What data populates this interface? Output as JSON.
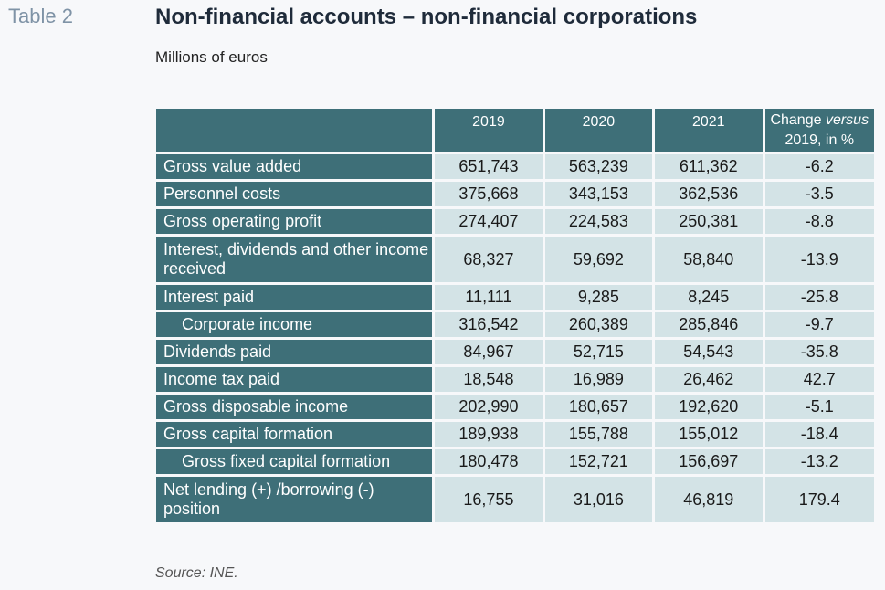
{
  "table_label": "Table 2",
  "title": "Non-financial accounts – non-financial corporations",
  "subtitle": "Millions of euros",
  "columns": {
    "y2019": "2019",
    "y2020": "2020",
    "y2021": "2021",
    "change_prefix": "Change ",
    "change_italic": "versus",
    "change_suffix": "2019, in %"
  },
  "rows": [
    {
      "label": "Gross value added",
      "indent": false,
      "v2019": "651,743",
      "v2020": "563,239",
      "v2021": "611,362",
      "change": "-6.2"
    },
    {
      "label": "Personnel costs",
      "indent": false,
      "v2019": "375,668",
      "v2020": "343,153",
      "v2021": "362,536",
      "change": "-3.5"
    },
    {
      "label": "Gross operating profit",
      "indent": false,
      "v2019": "274,407",
      "v2020": "224,583",
      "v2021": "250,381",
      "change": "-8.8"
    },
    {
      "label": "Interest, dividends and other income received",
      "indent": false,
      "v2019": "68,327",
      "v2020": "59,692",
      "v2021": "58,840",
      "change": "-13.9"
    },
    {
      "label": "Interest paid",
      "indent": false,
      "v2019": "11,111",
      "v2020": "9,285",
      "v2021": "8,245",
      "change": "-25.8"
    },
    {
      "label": "Corporate income",
      "indent": true,
      "v2019": "316,542",
      "v2020": "260,389",
      "v2021": "285,846",
      "change": "-9.7"
    },
    {
      "label": "Dividends paid",
      "indent": false,
      "v2019": "84,967",
      "v2020": "52,715",
      "v2021": "54,543",
      "change": "-35.8"
    },
    {
      "label": "Income tax paid",
      "indent": false,
      "v2019": "18,548",
      "v2020": "16,989",
      "v2021": "26,462",
      "change": "42.7"
    },
    {
      "label": "Gross disposable income",
      "indent": false,
      "v2019": "202,990",
      "v2020": "180,657",
      "v2021": "192,620",
      "change": "-5.1"
    },
    {
      "label": "Gross capital formation",
      "indent": false,
      "v2019": "189,938",
      "v2020": "155,788",
      "v2021": "155,012",
      "change": "-18.4"
    },
    {
      "label": "Gross fixed capital formation",
      "indent": true,
      "v2019": "180,478",
      "v2020": "152,721",
      "v2021": "156,697",
      "change": "-13.2"
    },
    {
      "label": "Net lending (+) /borrowing (-) position",
      "indent": false,
      "v2019": "16,755",
      "v2020": "31,016",
      "v2021": "46,819",
      "change": "179.4"
    }
  ],
  "source": "Source: INE.",
  "colors": {
    "header_bg": "#3e6f78",
    "cell_bg": "#d3e3e6",
    "table_label": "#7f93a6"
  }
}
